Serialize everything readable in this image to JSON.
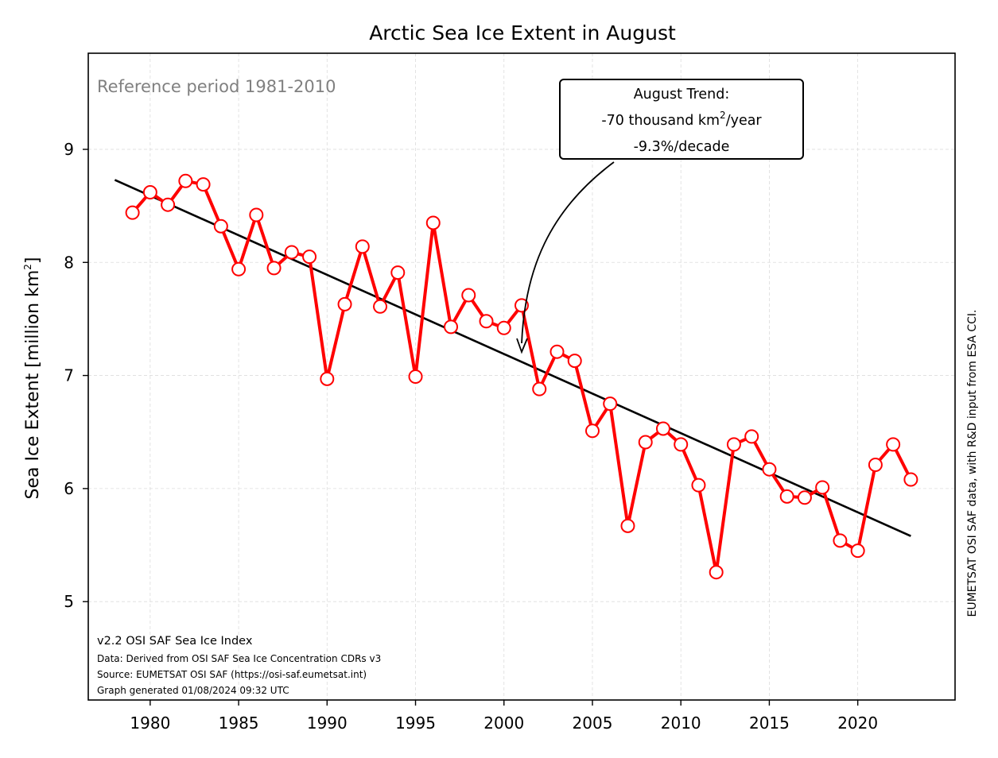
{
  "chart_data": {
    "type": "line",
    "title": "Arctic Sea Ice Extent in August",
    "xlabel": "",
    "ylabel": "Sea Ice Extent [million km",
    "ylabel_sup": "2",
    "ylabel_end": "]",
    "xlim": [
      1976.5,
      2025.5
    ],
    "ylim": [
      4.13,
      9.85
    ],
    "xticks": [
      1980,
      1985,
      1990,
      1995,
      2000,
      2005,
      2010,
      2015,
      2020
    ],
    "yticks": [
      5,
      6,
      7,
      8,
      9
    ],
    "grid": true,
    "series": [
      {
        "color": "#ff0000",
        "x": [
          1979,
          1980,
          1981,
          1982,
          1983,
          1984,
          1985,
          1986,
          1987,
          1988,
          1989,
          1990,
          1991,
          1992,
          1993,
          1994,
          1995,
          1996,
          1997,
          1998,
          1999,
          2000,
          2001,
          2002,
          2003,
          2004,
          2005,
          2006,
          2007,
          2008,
          2009,
          2010,
          2011,
          2012,
          2013,
          2014,
          2015,
          2016,
          2017,
          2018,
          2019,
          2020,
          2021,
          2022,
          2023
        ],
        "values": [
          8.44,
          8.62,
          8.51,
          8.72,
          8.69,
          8.32,
          7.94,
          8.42,
          7.95,
          8.09,
          8.05,
          6.97,
          7.63,
          8.14,
          7.61,
          7.91,
          6.99,
          8.35,
          7.43,
          7.71,
          7.48,
          7.42,
          7.62,
          6.88,
          7.21,
          7.13,
          6.51,
          6.75,
          5.67,
          6.41,
          6.53,
          6.39,
          6.03,
          5.26,
          6.39,
          6.46,
          6.17,
          5.93,
          5.92,
          6.01,
          5.54,
          5.45,
          6.21,
          6.39,
          6.08
        ]
      }
    ],
    "trend": {
      "color": "#000000",
      "x": [
        1978,
        2023
      ],
      "values": [
        8.73,
        5.58
      ]
    },
    "annotation": {
      "line1": "August Trend:",
      "line2_pre": "-70 thousand km",
      "line2_sup": "2",
      "line2_post": "/year",
      "line3": "-9.3%/decade",
      "arrow_target": {
        "x": 2000.4,
        "y": 7.19
      }
    },
    "reference_note": "Reference period 1981-2010",
    "source_lines": [
      "v2.2 OSI SAF Sea Ice Index",
      "Data: Derived from OSI SAF Sea Ice Concentration CDRs v3",
      "Source: EUMETSAT OSI SAF (https://osi-saf.eumetsat.int)",
      "Graph generated 01/08/2024 09:32 UTC"
    ],
    "side_credit": "EUMETSAT OSI SAF data, with R&D input from ESA CCI."
  }
}
